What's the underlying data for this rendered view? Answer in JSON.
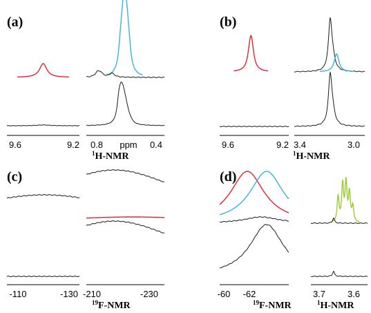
{
  "colors": {
    "black": "#1a1a1a",
    "red": "#e8202a",
    "blue": "#36b3e0",
    "green": "#9acd32"
  },
  "chart_data": [
    {
      "panel_label": "(a)",
      "type": "line",
      "xlabel": "H-NMR",
      "xlabel_sup": "1",
      "segments": [
        {
          "range": [
            9.65,
            9.15
          ],
          "ticks": [
            "9.6",
            "9.2"
          ],
          "series": [
            {
              "trace": "top",
              "color": "red",
              "peaks": [
                {
                  "x": 9.4,
                  "h": 0.25,
                  "w": 0.006
                }
              ]
            },
            {
              "trace": "bottom",
              "color": "black",
              "peaks": [
                {
                  "x": 9.4,
                  "h": 0.03,
                  "w": 0.01
                }
              ]
            }
          ]
        },
        {
          "range": [
            0.9,
            0.35
          ],
          "ticks": [
            "0.8",
            "0.4"
          ],
          "unit_label": "ppm",
          "series": [
            {
              "trace": "top",
              "color": "blue",
              "peaks": [
                {
                  "x": 0.63,
                  "h": 0.85,
                  "w": 0.003
                },
                {
                  "x": 0.645,
                  "h": 0.55,
                  "w": 0.003
                },
                {
                  "x": 0.615,
                  "h": 0.55,
                  "w": 0.003
                },
                {
                  "x": 0.66,
                  "h": 0.3,
                  "w": 0.003
                },
                {
                  "x": 0.6,
                  "h": 0.3,
                  "w": 0.003
                }
              ]
            },
            {
              "trace": "top",
              "color": "black",
              "peaks": [
                {
                  "x": 0.82,
                  "h": 0.08,
                  "w": 0.004
                },
                {
                  "x": 0.8,
                  "h": 0.06,
                  "w": 0.004
                },
                {
                  "x": 0.72,
                  "h": 0.07,
                  "w": 0.004
                }
              ]
            },
            {
              "trace": "bottom",
              "color": "black",
              "peaks": [
                {
                  "x": 0.67,
                  "h": 0.7,
                  "w": 0.003
                },
                {
                  "x": 0.655,
                  "h": 0.75,
                  "w": 0.003
                },
                {
                  "x": 0.64,
                  "h": 0.6,
                  "w": 0.003
                },
                {
                  "x": 0.625,
                  "h": 0.4,
                  "w": 0.003
                },
                {
                  "x": 0.61,
                  "h": 0.2,
                  "w": 0.003
                },
                {
                  "x": 0.59,
                  "h": 0.1,
                  "w": 0.003
                }
              ]
            }
          ]
        }
      ]
    },
    {
      "panel_label": "(b)",
      "type": "line",
      "xlabel": "H-NMR",
      "xlabel_sup": "1",
      "segments": [
        {
          "range": [
            9.65,
            9.15
          ],
          "ticks": [
            "9.6",
            "9.2"
          ],
          "series": [
            {
              "trace": "top",
              "color": "red",
              "peaks": [
                {
                  "x": 9.42,
                  "h": 0.45,
                  "w": 0.004
                },
                {
                  "x": 9.43,
                  "h": 0.3,
                  "w": 0.004
                }
              ]
            },
            {
              "trace": "bottom",
              "color": "black",
              "peaks": []
            }
          ]
        },
        {
          "range": [
            3.45,
            2.9
          ],
          "ticks": [
            "3.4",
            "3.0"
          ],
          "series": [
            {
              "trace": "top",
              "color": "black",
              "peaks": [
                {
                  "x": 3.17,
                  "h": 0.95,
                  "w": 0.003
                },
                {
                  "x": 3.15,
                  "h": 0.2,
                  "w": 0.004
                }
              ]
            },
            {
              "trace": "top",
              "color": "blue",
              "peaks": [
                {
                  "x": 3.12,
                  "h": 0.35,
                  "w": 0.004
                }
              ]
            },
            {
              "trace": "bottom",
              "color": "black",
              "peaks": [
                {
                  "x": 3.17,
                  "h": 0.95,
                  "w": 0.003
                },
                {
                  "x": 3.15,
                  "h": 0.2,
                  "w": 0.004
                }
              ]
            }
          ]
        }
      ]
    },
    {
      "panel_label": "(c)",
      "type": "line",
      "xlabel": "F-NMR",
      "xlabel_sup": "19",
      "segments": [
        {
          "range": [
            -104,
            -133
          ],
          "ticks": [
            "-110",
            "-130"
          ],
          "series": [
            {
              "trace": "top",
              "color": "black",
              "peaks": [
                {
                  "x": -119,
                  "h": 0.55,
                  "w": 0.15
                }
              ]
            },
            {
              "trace": "bottom",
              "color": "black",
              "peaks": []
            }
          ]
        },
        {
          "range": [
            -208,
            -236
          ],
          "ticks": [
            "-210",
            "-230"
          ],
          "series": [
            {
              "trace": "top",
              "color": "black",
              "peaks": [
                {
                  "x": -218,
                  "h": 1.0,
                  "w": 0.12
                }
              ]
            },
            {
              "trace": "top",
              "color": "red",
              "peaks": [
                {
                  "x": -224.5,
                  "h": 0.15,
                  "w": 0.15
                }
              ]
            },
            {
              "trace": "bottom",
              "color": "black",
              "peaks": [
                {
                  "x": -218,
                  "h": 1.0,
                  "w": 0.12
                }
              ]
            }
          ]
        }
      ]
    },
    {
      "panel_label": "(d)",
      "type": "line",
      "segments": [
        {
          "range": [
            -60.5,
            -65.5
          ],
          "ticks": [
            "-60",
            "-62"
          ],
          "xlabel": "F-NMR",
          "xlabel_sup": "19",
          "series": [
            {
              "trace": "top",
              "color": "red",
              "peaks": [
                {
                  "x": -62.5,
                  "h": 1.0,
                  "w": 0.03
                }
              ]
            },
            {
              "trace": "top",
              "color": "blue",
              "peaks": [
                {
                  "x": -63.9,
                  "h": 1.0,
                  "w": 0.03
                }
              ]
            },
            {
              "trace": "top",
              "color": "black",
              "peaks": [
                {
                  "x": -63.5,
                  "h": 0.12,
                  "w": 0.03
                }
              ]
            },
            {
              "trace": "bottom",
              "color": "black",
              "peaks": [
                {
                  "x": -63.9,
                  "h": 1.0,
                  "w": 0.03
                }
              ]
            }
          ]
        },
        {
          "range": [
            3.75,
            3.5
          ],
          "ticks": [
            "3.7",
            "3.6"
          ],
          "xlabel": "H-NMR",
          "xlabel_sup": "1",
          "series": [
            {
              "trace": "top",
              "color": "green",
              "peaks": [
                {
                  "x": 3.63,
                  "h": 0.5,
                  "w": 0.002
                },
                {
                  "x": 3.61,
                  "h": 0.72,
                  "w": 0.002
                },
                {
                  "x": 3.595,
                  "h": 0.75,
                  "w": 0.002
                },
                {
                  "x": 3.58,
                  "h": 0.55,
                  "w": 0.002
                },
                {
                  "x": 3.565,
                  "h": 0.3,
                  "w": 0.002
                }
              ]
            },
            {
              "trace": "top",
              "color": "black",
              "peaks": [
                {
                  "x": 3.65,
                  "h": 0.1,
                  "w": 0.002
                }
              ]
            },
            {
              "trace": "bottom",
              "color": "black",
              "peaks": [
                {
                  "x": 3.65,
                  "h": 0.1,
                  "w": 0.002
                }
              ]
            }
          ]
        }
      ]
    }
  ]
}
